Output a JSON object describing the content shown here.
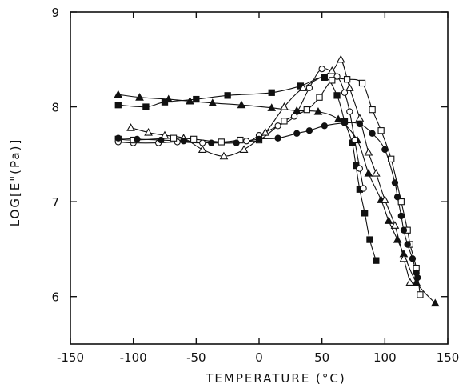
{
  "chart_data": {
    "type": "scatter",
    "title": "",
    "xlabel": "TEMPERATURE (°C)",
    "ylabel": "LOG[E\"(Pa)]",
    "xlim": [
      -150,
      150
    ],
    "ylim": [
      5.5,
      9
    ],
    "xticks": [
      -150,
      -100,
      -50,
      0,
      50,
      100,
      150
    ],
    "yticks": [
      6,
      7,
      8,
      9
    ],
    "grid": false,
    "legend": "none",
    "series": [
      {
        "marker": "filled-square",
        "points": [
          [
            -112,
            8.02
          ],
          [
            -90,
            8.0
          ],
          [
            -75,
            8.05
          ],
          [
            -50,
            8.08
          ],
          [
            -25,
            8.12
          ],
          [
            10,
            8.15
          ],
          [
            33,
            8.22
          ],
          [
            52,
            8.31
          ],
          [
            62,
            8.12
          ],
          [
            68,
            7.85
          ],
          [
            74,
            7.62
          ],
          [
            77,
            7.38
          ],
          [
            80,
            7.13
          ],
          [
            84,
            6.88
          ],
          [
            88,
            6.6
          ],
          [
            93,
            6.38
          ]
        ]
      },
      {
        "marker": "filled-triangle",
        "points": [
          [
            -112,
            8.13
          ],
          [
            -95,
            8.1
          ],
          [
            -72,
            8.08
          ],
          [
            -55,
            8.06
          ],
          [
            -37,
            8.04
          ],
          [
            -14,
            8.02
          ],
          [
            10,
            7.99
          ],
          [
            30,
            7.96
          ],
          [
            47,
            7.95
          ],
          [
            63,
            7.87
          ],
          [
            78,
            7.65
          ],
          [
            87,
            7.3
          ],
          [
            97,
            7.02
          ],
          [
            103,
            6.8
          ],
          [
            110,
            6.6
          ],
          [
            115,
            6.45
          ],
          [
            125,
            6.15
          ],
          [
            140,
            5.93
          ]
        ]
      },
      {
        "marker": "open-triangle",
        "points": [
          [
            -102,
            7.78
          ],
          [
            -88,
            7.73
          ],
          [
            -75,
            7.7
          ],
          [
            -60,
            7.67
          ],
          [
            -45,
            7.55
          ],
          [
            -28,
            7.48
          ],
          [
            -12,
            7.55
          ],
          [
            5,
            7.73
          ],
          [
            20,
            8.0
          ],
          [
            35,
            8.2
          ],
          [
            58,
            8.38
          ],
          [
            65,
            8.5
          ],
          [
            72,
            8.2
          ],
          [
            80,
            7.88
          ],
          [
            87,
            7.52
          ],
          [
            93,
            7.3
          ],
          [
            100,
            7.02
          ],
          [
            108,
            6.75
          ],
          [
            115,
            6.4
          ],
          [
            120,
            6.15
          ]
        ]
      },
      {
        "marker": "open-circle",
        "points": [
          [
            -112,
            7.63
          ],
          [
            -100,
            7.62
          ],
          [
            -80,
            7.62
          ],
          [
            -65,
            7.63
          ],
          [
            -45,
            7.62
          ],
          [
            -10,
            7.64
          ],
          [
            0,
            7.7
          ],
          [
            15,
            7.8
          ],
          [
            28,
            7.9
          ],
          [
            40,
            8.2
          ],
          [
            50,
            8.4
          ],
          [
            62,
            8.32
          ],
          [
            68,
            8.15
          ],
          [
            72,
            7.95
          ],
          [
            76,
            7.65
          ],
          [
            80,
            7.35
          ],
          [
            83,
            7.14
          ]
        ]
      },
      {
        "marker": "open-square",
        "points": [
          [
            -112,
            7.66
          ],
          [
            -100,
            7.65
          ],
          [
            -68,
            7.67
          ],
          [
            -52,
            7.66
          ],
          [
            -30,
            7.63
          ],
          [
            -15,
            7.65
          ],
          [
            0,
            7.65
          ],
          [
            20,
            7.85
          ],
          [
            38,
            7.97
          ],
          [
            48,
            8.1
          ],
          [
            58,
            8.28
          ],
          [
            70,
            8.29
          ],
          [
            82,
            8.25
          ],
          [
            90,
            7.97
          ],
          [
            97,
            7.75
          ],
          [
            105,
            7.45
          ],
          [
            113,
            7.0
          ],
          [
            118,
            6.7
          ],
          [
            120,
            6.55
          ],
          [
            125,
            6.3
          ],
          [
            128,
            6.02
          ]
        ]
      },
      {
        "marker": "filled-circle",
        "points": [
          [
            -112,
            7.67
          ],
          [
            -97,
            7.66
          ],
          [
            -78,
            7.65
          ],
          [
            -60,
            7.64
          ],
          [
            -38,
            7.62
          ],
          [
            -18,
            7.62
          ],
          [
            0,
            7.66
          ],
          [
            15,
            7.67
          ],
          [
            30,
            7.72
          ],
          [
            40,
            7.75
          ],
          [
            52,
            7.8
          ],
          [
            68,
            7.83
          ],
          [
            80,
            7.82
          ],
          [
            90,
            7.72
          ],
          [
            100,
            7.55
          ],
          [
            108,
            7.2
          ],
          [
            110,
            7.05
          ],
          [
            113,
            6.85
          ],
          [
            115,
            6.7
          ],
          [
            118,
            6.55
          ],
          [
            122,
            6.4
          ],
          [
            125,
            6.25
          ],
          [
            126,
            6.2
          ]
        ]
      }
    ]
  }
}
